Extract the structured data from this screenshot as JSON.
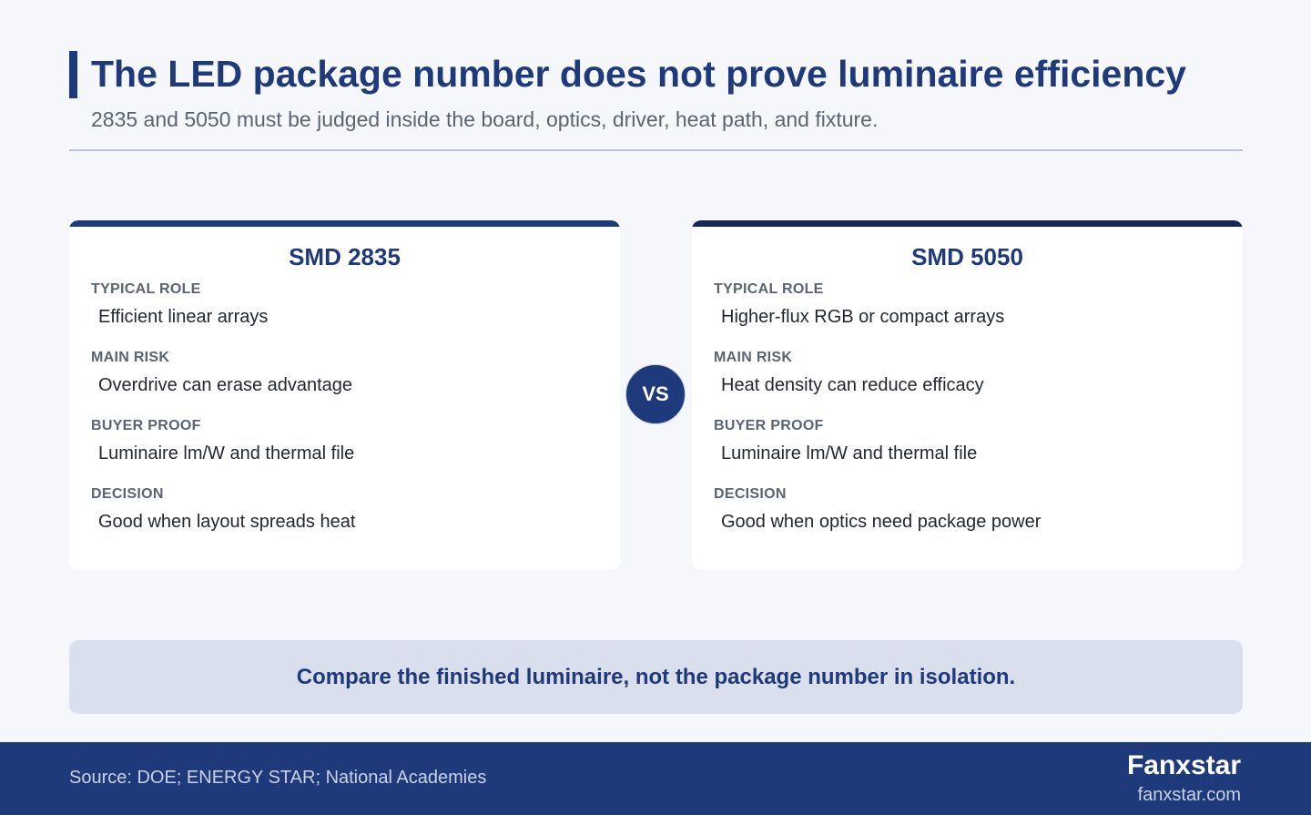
{
  "header": {
    "title": "The LED package number does not prove luminaire efficiency",
    "subtitle": "2835 and 5050 must be judged inside the board, optics, driver, heat path, and fixture."
  },
  "cards": [
    {
      "title": "SMD 2835",
      "rows": [
        {
          "label": "TYPICAL ROLE",
          "value": "Efficient linear arrays"
        },
        {
          "label": "MAIN RISK",
          "value": "Overdrive can erase advantage"
        },
        {
          "label": "BUYER PROOF",
          "value": "Luminaire lm/W and thermal file"
        },
        {
          "label": "DECISION",
          "value": "Good when layout spreads heat"
        }
      ]
    },
    {
      "title": "SMD 5050",
      "rows": [
        {
          "label": "TYPICAL ROLE",
          "value": "Higher-flux RGB or compact arrays"
        },
        {
          "label": "MAIN RISK",
          "value": "Heat density can reduce efficacy"
        },
        {
          "label": "BUYER PROOF",
          "value": "Luminaire lm/W and thermal file"
        },
        {
          "label": "DECISION",
          "value": "Good when optics need package power"
        }
      ]
    }
  ],
  "vs_label": "VS",
  "callout": "Compare the finished luminaire, not the package number in isolation.",
  "footer": {
    "source": "Source: DOE; ENERGY STAR; National Academies",
    "brand": "Fanxstar",
    "url": "fanxstar.com"
  },
  "colors": {
    "primary": "#1f3a7a",
    "dark_accent": "#13275a",
    "background": "#f5f7fa",
    "callout_bg": "#d9dfed"
  }
}
